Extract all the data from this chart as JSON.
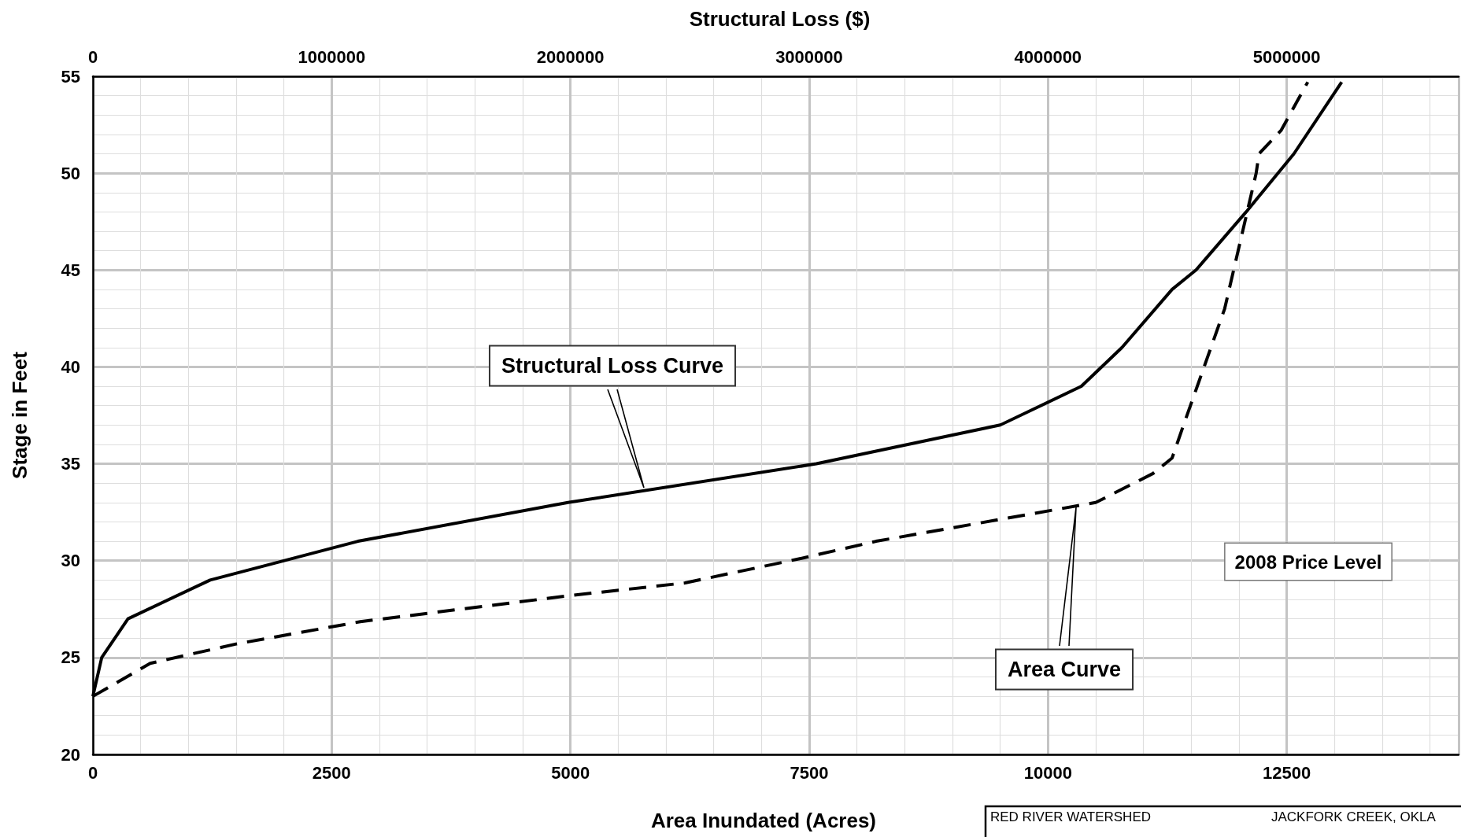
{
  "chart_data": {
    "type": "line",
    "x2label": "Structural Loss ($)",
    "xlabel": "Area Inundated (Acres)",
    "ylabel": "Stage in Feet",
    "xlim": [
      0,
      14300
    ],
    "xticks": [
      0,
      2500,
      5000,
      7500,
      10000,
      12500
    ],
    "x2lim": [
      0,
      5720000
    ],
    "x2ticks": [
      0,
      1000000,
      2000000,
      3000000,
      4000000,
      5000000
    ],
    "ylim": [
      20,
      55
    ],
    "yticks": [
      20,
      25,
      30,
      35,
      40,
      45,
      50,
      55
    ],
    "grid": true,
    "marker": "none",
    "series": [
      {
        "color": "#000000",
        "axis": "x2",
        "line_style": "solid",
        "x": [
          0,
          37000,
          147000,
          491000,
          1110000,
          1990000,
          3030000,
          3800000,
          4140000,
          4310000,
          4520000,
          4620000,
          4830000,
          5030000,
          5230000
        ],
        "values": [
          23,
          25,
          27,
          29,
          31,
          33,
          35,
          37,
          39,
          41,
          44,
          45,
          48,
          51,
          54.7
        ]
      },
      {
        "color": "#000000",
        "line_style": "dashed",
        "x": [
          0,
          600,
          1500,
          2800,
          5000,
          6200,
          7400,
          8200,
          10500,
          11100,
          11300,
          11420,
          11850,
          12180,
          12210,
          12440,
          12720
        ],
        "values": [
          23,
          24.7,
          25.7,
          26.85,
          28.2,
          28.85,
          30.1,
          31,
          33,
          34.5,
          35.3,
          37,
          43,
          50,
          51,
          52.2,
          54.7
        ]
      }
    ],
    "annotations": [
      "Structural Loss Curve",
      "Area Curve",
      "2008 Price Level",
      "RED RIVER WATERSHED",
      "JACKFORK CREEK, OKLA"
    ]
  }
}
